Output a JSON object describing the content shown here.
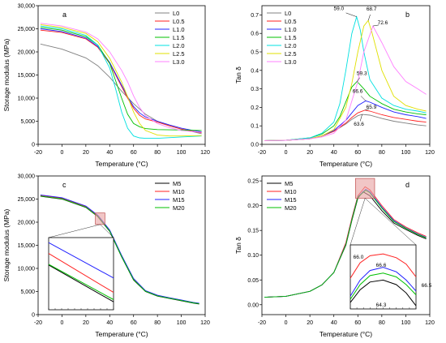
{
  "chart_data": [
    {
      "panel": "a",
      "type": "line",
      "xlabel": "Temperature (°C)",
      "ylabel": "Storage modulus (MPa)",
      "xlim": [
        -20,
        120
      ],
      "ylim": [
        0,
        30000
      ],
      "xticks": [
        -20,
        0,
        20,
        40,
        60,
        80,
        100,
        120
      ],
      "yticks": [
        0,
        5000,
        10000,
        15000,
        20000,
        25000,
        30000
      ],
      "ytick_labels": [
        "0",
        "5,000",
        "10,000",
        "15,000",
        "20,000",
        "25,000",
        "30,000"
      ],
      "legend": {
        "position": "top-right"
      },
      "grid": false,
      "series": [
        {
          "name": "L0",
          "color": "#808080",
          "x": [
            -18,
            0,
            20,
            30,
            40,
            50,
            60,
            70,
            80,
            90,
            100,
            110,
            117
          ],
          "y": [
            21700,
            20600,
            18700,
            17000,
            14500,
            11500,
            8800,
            6500,
            5000,
            4000,
            3300,
            2700,
            2300
          ]
        },
        {
          "name": "L0.5",
          "color": "#ff2020",
          "x": [
            -18,
            0,
            20,
            30,
            40,
            50,
            55,
            60,
            65,
            70,
            80,
            90,
            100,
            110,
            117
          ],
          "y": [
            24700,
            24200,
            22800,
            21000,
            17500,
            12500,
            10000,
            7800,
            6300,
            5500,
            4800,
            4000,
            3300,
            2800,
            2500
          ]
        },
        {
          "name": "L1.0",
          "color": "#2020ff",
          "x": [
            -18,
            0,
            20,
            30,
            40,
            50,
            55,
            60,
            65,
            70,
            80,
            90,
            100,
            110,
            117
          ],
          "y": [
            25000,
            24400,
            23000,
            21200,
            17700,
            12800,
            10300,
            8200,
            6800,
            5900,
            5000,
            4200,
            3500,
            3000,
            2700
          ]
        },
        {
          "name": "L1.5",
          "color": "#00c000",
          "x": [
            -18,
            0,
            20,
            30,
            40,
            50,
            55,
            60,
            65,
            70,
            80,
            100,
            117
          ],
          "y": [
            25300,
            24700,
            23300,
            21500,
            17500,
            10000,
            6500,
            4500,
            3800,
            3400,
            3200,
            3100,
            3000
          ]
        },
        {
          "name": "L2.0",
          "color": "#00e0e0",
          "x": [
            -18,
            0,
            20,
            30,
            40,
            45,
            50,
            55,
            60,
            65,
            70,
            80,
            100,
            117
          ],
          "y": [
            25600,
            25000,
            23600,
            21500,
            16500,
            12000,
            7000,
            3500,
            1800,
            1400,
            1300,
            1300,
            1600,
            1800
          ]
        },
        {
          "name": "L2.5",
          "color": "#e0e000",
          "x": [
            -18,
            0,
            20,
            30,
            40,
            50,
            55,
            60,
            65,
            70,
            80,
            90,
            100,
            117
          ],
          "y": [
            25900,
            25300,
            24000,
            22200,
            18600,
            13500,
            10300,
            7000,
            4500,
            3000,
            2000,
            1800,
            1800,
            1900
          ]
        },
        {
          "name": "L3.0",
          "color": "#ff80ff",
          "x": [
            -18,
            0,
            20,
            30,
            40,
            50,
            55,
            60,
            65,
            70,
            80,
            90,
            100,
            117
          ],
          "y": [
            26200,
            25600,
            24300,
            22800,
            20000,
            16000,
            13500,
            10500,
            8000,
            6200,
            4500,
            3600,
            3000,
            2600
          ]
        }
      ]
    },
    {
      "panel": "b",
      "type": "line",
      "xlabel": "Temperature (°C)",
      "ylabel": "Tan δ",
      "xlim": [
        -20,
        120
      ],
      "ylim": [
        0,
        0.75
      ],
      "xticks": [
        -20,
        0,
        20,
        40,
        60,
        80,
        100,
        120
      ],
      "yticks": [
        0.0,
        0.1,
        0.2,
        0.3,
        0.4,
        0.5,
        0.6,
        0.7
      ],
      "ytick_labels": [
        "0.0",
        "0.1",
        "0.2",
        "0.3",
        "0.4",
        "0.5",
        "0.6",
        "0.7"
      ],
      "legend": {
        "position": "top-left"
      },
      "grid": false,
      "annotations": [
        "59.0",
        "68.7",
        "72.6",
        "59.3",
        "66.6",
        "65.9",
        "63.6"
      ],
      "series": [
        {
          "name": "L0",
          "color": "#808080",
          "x": [
            -18,
            0,
            20,
            30,
            40,
            50,
            55,
            60,
            63.6,
            70,
            80,
            90,
            100,
            110,
            117
          ],
          "y": [
            0.02,
            0.022,
            0.03,
            0.045,
            0.07,
            0.11,
            0.135,
            0.155,
            0.162,
            0.158,
            0.14,
            0.125,
            0.115,
            0.105,
            0.1
          ]
        },
        {
          "name": "L0.5",
          "color": "#ff2020",
          "x": [
            -18,
            0,
            20,
            30,
            40,
            50,
            55,
            60,
            65.9,
            70,
            80,
            90,
            100,
            110,
            117
          ],
          "y": [
            0.02,
            0.022,
            0.03,
            0.045,
            0.07,
            0.115,
            0.145,
            0.17,
            0.185,
            0.18,
            0.16,
            0.145,
            0.135,
            0.125,
            0.12
          ]
        },
        {
          "name": "L1.0",
          "color": "#2020ff",
          "x": [
            -18,
            0,
            20,
            30,
            40,
            50,
            55,
            60,
            66.6,
            70,
            80,
            90,
            100,
            110,
            117
          ],
          "y": [
            0.02,
            0.022,
            0.03,
            0.045,
            0.075,
            0.13,
            0.17,
            0.21,
            0.235,
            0.228,
            0.2,
            0.175,
            0.16,
            0.15,
            0.14
          ]
        },
        {
          "name": "L1.5",
          "color": "#00c000",
          "x": [
            -18,
            0,
            20,
            30,
            40,
            45,
            50,
            55,
            59.3,
            65,
            70,
            80,
            90,
            100,
            110,
            117
          ],
          "y": [
            0.02,
            0.022,
            0.035,
            0.055,
            0.1,
            0.15,
            0.23,
            0.31,
            0.34,
            0.3,
            0.26,
            0.22,
            0.19,
            0.175,
            0.165,
            0.16
          ]
        },
        {
          "name": "L2.0",
          "color": "#00e0e0",
          "x": [
            -18,
            0,
            20,
            30,
            40,
            45,
            50,
            55,
            59.0,
            62,
            65,
            70,
            80,
            90,
            100,
            110,
            117
          ],
          "y": [
            0.02,
            0.022,
            0.035,
            0.06,
            0.12,
            0.22,
            0.4,
            0.6,
            0.69,
            0.62,
            0.5,
            0.35,
            0.25,
            0.21,
            0.19,
            0.18,
            0.17
          ]
        },
        {
          "name": "L2.5",
          "color": "#e0e000",
          "x": [
            -18,
            0,
            20,
            30,
            40,
            50,
            55,
            60,
            65,
            68.7,
            72,
            80,
            90,
            100,
            110,
            117
          ],
          "y": [
            0.02,
            0.022,
            0.03,
            0.045,
            0.08,
            0.2,
            0.33,
            0.5,
            0.64,
            0.67,
            0.6,
            0.4,
            0.26,
            0.21,
            0.19,
            0.18
          ]
        },
        {
          "name": "L3.0",
          "color": "#ff80ff",
          "x": [
            -18,
            0,
            20,
            30,
            40,
            50,
            60,
            65,
            72.6,
            80,
            90,
            100,
            110,
            117
          ],
          "y": [
            0.02,
            0.022,
            0.03,
            0.04,
            0.06,
            0.13,
            0.34,
            0.5,
            0.64,
            0.55,
            0.42,
            0.34,
            0.3,
            0.27
          ]
        }
      ]
    },
    {
      "panel": "c",
      "type": "line",
      "xlabel": "Temperature (°C)",
      "ylabel": "Storage modulus (MPa)",
      "xlim": [
        -20,
        120
      ],
      "ylim": [
        0,
        30000
      ],
      "xticks": [
        -20,
        0,
        20,
        40,
        60,
        80,
        100,
        120
      ],
      "yticks": [
        0,
        5000,
        10000,
        15000,
        20000,
        25000,
        30000
      ],
      "ytick_labels": [
        "0",
        "5,000",
        "10,000",
        "15,000",
        "20,000",
        "25,000",
        "30,000"
      ],
      "legend": {
        "position": "top-right"
      },
      "grid": false,
      "series": [
        {
          "name": "M5",
          "color": "#000000",
          "x": [
            -18,
            0,
            20,
            30,
            40,
            50,
            60,
            70,
            80,
            90,
            100,
            110,
            115
          ],
          "y": [
            25600,
            25000,
            23200,
            21200,
            18000,
            12500,
            7500,
            5000,
            4000,
            3500,
            3000,
            2500,
            2300
          ]
        },
        {
          "name": "M10",
          "color": "#ff2020",
          "x": [
            -18,
            0,
            20,
            30,
            40,
            50,
            60,
            70,
            80,
            90,
            100,
            110,
            115
          ],
          "y": [
            25800,
            25200,
            23400,
            21400,
            18200,
            12700,
            7700,
            5100,
            4100,
            3600,
            3100,
            2600,
            2400
          ]
        },
        {
          "name": "M15",
          "color": "#2020ff",
          "x": [
            -18,
            0,
            20,
            30,
            40,
            50,
            60,
            70,
            80,
            90,
            100,
            110,
            115
          ],
          "y": [
            25900,
            25300,
            23500,
            21500,
            18300,
            12800,
            7800,
            5200,
            4200,
            3650,
            3150,
            2650,
            2450
          ]
        },
        {
          "name": "M20",
          "color": "#00c000",
          "x": [
            -18,
            0,
            20,
            30,
            40,
            50,
            60,
            70,
            80,
            90,
            100,
            110,
            115
          ],
          "y": [
            25650,
            25050,
            23250,
            21250,
            18050,
            12550,
            7550,
            5050,
            4050,
            3550,
            3050,
            2550,
            2350
          ]
        }
      ],
      "inset": {
        "ylim": [
          0,
          1
        ],
        "series": [
          {
            "name": "M5",
            "color": "#000000",
            "x": [
              0,
              1
            ],
            "y": [
              0.62,
              0.11
            ]
          },
          {
            "name": "M10",
            "color": "#ff2020",
            "x": [
              0,
              1
            ],
            "y": [
              0.78,
              0.24
            ]
          },
          {
            "name": "M15",
            "color": "#2020ff",
            "x": [
              0,
              1
            ],
            "y": [
              0.93,
              0.44
            ]
          },
          {
            "name": "M20",
            "color": "#00c000",
            "x": [
              0,
              1
            ],
            "y": [
              0.63,
              0.14
            ]
          }
        ]
      }
    },
    {
      "panel": "d",
      "type": "line",
      "xlabel": "Temperature (°C)",
      "ylabel": "Tan δ",
      "xlim": [
        -20,
        120
      ],
      "ylim": [
        -0.02,
        0.26
      ],
      "xticks": [
        -20,
        0,
        20,
        40,
        60,
        80,
        100,
        120
      ],
      "yticks": [
        0.0,
        0.05,
        0.1,
        0.15,
        0.2,
        0.25
      ],
      "ytick_labels": [
        "0.00",
        "0.05",
        "0.10",
        "0.15",
        "0.20",
        "0.25"
      ],
      "legend": {
        "position": "top-left"
      },
      "grid": false,
      "annotations": [
        "66.0",
        "66.6",
        "66.5",
        "64.3"
      ],
      "series": [
        {
          "name": "M5",
          "color": "#000000",
          "x": [
            -18,
            0,
            20,
            30,
            40,
            50,
            55,
            60,
            64.3,
            70,
            80,
            90,
            100,
            110,
            117
          ],
          "y": [
            0.015,
            0.017,
            0.027,
            0.04,
            0.065,
            0.12,
            0.17,
            0.215,
            0.228,
            0.22,
            0.19,
            0.165,
            0.152,
            0.14,
            0.133
          ]
        },
        {
          "name": "M10",
          "color": "#ff2020",
          "x": [
            -18,
            0,
            20,
            30,
            40,
            50,
            55,
            60,
            66.0,
            70,
            80,
            90,
            100,
            110,
            117
          ],
          "y": [
            0.015,
            0.017,
            0.027,
            0.04,
            0.065,
            0.125,
            0.175,
            0.22,
            0.238,
            0.232,
            0.2,
            0.172,
            0.157,
            0.145,
            0.138
          ]
        },
        {
          "name": "M15",
          "color": "#2020ff",
          "x": [
            -18,
            0,
            20,
            30,
            40,
            50,
            55,
            60,
            66.6,
            70,
            80,
            90,
            100,
            110,
            117
          ],
          "y": [
            0.015,
            0.017,
            0.027,
            0.04,
            0.065,
            0.122,
            0.172,
            0.218,
            0.233,
            0.228,
            0.197,
            0.17,
            0.155,
            0.143,
            0.136
          ]
        },
        {
          "name": "M20",
          "color": "#00c000",
          "x": [
            -18,
            0,
            20,
            30,
            40,
            50,
            55,
            60,
            66.5,
            70,
            80,
            90,
            100,
            110,
            117
          ],
          "y": [
            0.015,
            0.017,
            0.027,
            0.04,
            0.065,
            0.121,
            0.171,
            0.217,
            0.231,
            0.226,
            0.195,
            0.168,
            0.154,
            0.142,
            0.135
          ]
        }
      ],
      "inset": {
        "ylim": [
          0,
          1
        ],
        "series": [
          {
            "name": "M5",
            "color": "#000000",
            "x": [
              0,
              0.15,
              0.3,
              0.5,
              0.7,
              0.85,
              1
            ],
            "y": [
              0.1,
              0.3,
              0.42,
              0.45,
              0.38,
              0.25,
              0.05
            ]
          },
          {
            "name": "M10",
            "color": "#ff2020",
            "x": [
              0,
              0.15,
              0.3,
              0.5,
              0.7,
              0.85,
              1
            ],
            "y": [
              0.48,
              0.72,
              0.83,
              0.86,
              0.8,
              0.7,
              0.5
            ]
          },
          {
            "name": "M15",
            "color": "#2020ff",
            "x": [
              0,
              0.15,
              0.3,
              0.5,
              0.7,
              0.85,
              1
            ],
            "y": [
              0.2,
              0.45,
              0.6,
              0.65,
              0.58,
              0.45,
              0.28
            ]
          },
          {
            "name": "M20",
            "color": "#00c000",
            "x": [
              0,
              0.15,
              0.3,
              0.5,
              0.7,
              0.85,
              1
            ],
            "y": [
              0.15,
              0.38,
              0.52,
              0.56,
              0.5,
              0.38,
              0.22
            ]
          }
        ]
      }
    }
  ]
}
